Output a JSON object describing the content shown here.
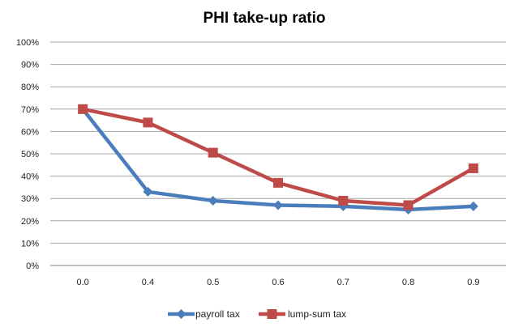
{
  "chart_data": {
    "type": "line",
    "title": "PHI take-up ratio",
    "categories": [
      "0.0",
      "0.4",
      "0.5",
      "0.6",
      "0.7",
      "0.8",
      "0.9"
    ],
    "y_ticks": [
      "0%",
      "10%",
      "20%",
      "30%",
      "40%",
      "50%",
      "60%",
      "70%",
      "80%",
      "90%",
      "100%"
    ],
    "ylim": [
      0,
      1
    ],
    "grid": "horizontal",
    "legend_position": "bottom",
    "series": [
      {
        "name": "payroll tax",
        "color": "#4a7ebb",
        "marker": "diamond",
        "values": [
          0.7,
          0.33,
          0.29,
          0.27,
          0.265,
          0.25,
          0.265
        ]
      },
      {
        "name": "lump-sum tax",
        "color": "#be4b48",
        "marker": "square",
        "values": [
          0.7,
          0.64,
          0.505,
          0.37,
          0.29,
          0.27,
          0.435
        ]
      }
    ]
  }
}
